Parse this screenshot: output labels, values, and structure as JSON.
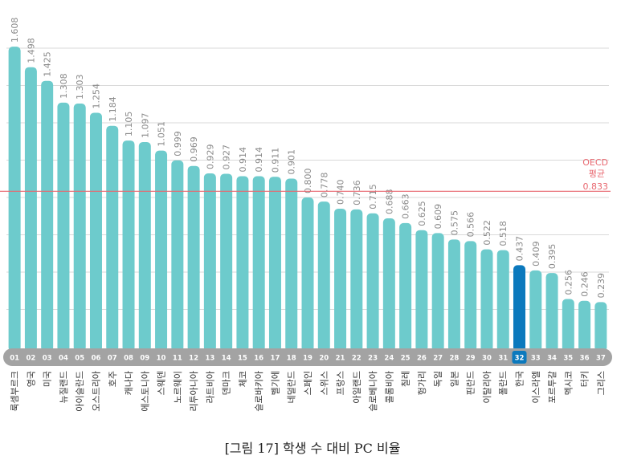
{
  "chart_data": {
    "type": "bar",
    "categories": [
      "룩셈부르크",
      "영국",
      "미국",
      "뉴질랜드",
      "아이슬란드",
      "오스트리아",
      "호주",
      "캐나다",
      "에스토니아",
      "스웨덴",
      "노르웨이",
      "리투아니아",
      "라트비아",
      "덴마크",
      "체코",
      "슬로바키아",
      "벨기에",
      "네덜란드",
      "스페인",
      "스위스",
      "프랑스",
      "아일랜드",
      "슬로베니아",
      "콜롬비아",
      "칠레",
      "헝가리",
      "독일",
      "일본",
      "핀란드",
      "이탈리아",
      "폴란드",
      "한국",
      "이스라엘",
      "포르투갈",
      "멕시코",
      "터키",
      "그리스"
    ],
    "ranks": [
      "01",
      "02",
      "03",
      "04",
      "05",
      "06",
      "07",
      "08",
      "09",
      "10",
      "11",
      "12",
      "13",
      "14",
      "15",
      "16",
      "17",
      "18",
      "19",
      "20",
      "21",
      "22",
      "23",
      "24",
      "25",
      "26",
      "27",
      "28",
      "29",
      "30",
      "31",
      "32",
      "33",
      "34",
      "35",
      "36",
      "37"
    ],
    "values": [
      1.608,
      1.498,
      1.425,
      1.308,
      1.303,
      1.254,
      1.184,
      1.105,
      1.097,
      1.051,
      0.999,
      0.969,
      0.929,
      0.927,
      0.914,
      0.914,
      0.911,
      0.901,
      0.8,
      0.778,
      0.74,
      0.736,
      0.715,
      0.688,
      0.663,
      0.625,
      0.609,
      0.575,
      0.566,
      0.522,
      0.518,
      0.437,
      0.409,
      0.395,
      0.256,
      0.246,
      0.239
    ],
    "value_labels": [
      "1.608",
      "1.498",
      "1.425",
      "1.308",
      "1.303",
      "1.254",
      "1.184",
      "1.105",
      "1.097",
      "1.051",
      "0.999",
      "0.969",
      "0.929",
      "0.927",
      "0.914",
      "0.914",
      "0.911",
      "0.901",
      "0.800",
      "0.778",
      "0.740",
      "0.736",
      "0.715",
      "0.688",
      "0.663",
      "0.625",
      "0.609",
      "0.575",
      "0.566",
      "0.522",
      "0.518",
      "0.437",
      "0.409",
      "0.395",
      "0.256",
      "0.246",
      "0.239"
    ],
    "highlight_index": 31,
    "reference": {
      "value": 0.833,
      "label_line1": "OECD",
      "label_line2": "평균",
      "label_value": "0.833"
    },
    "title": "",
    "xlabel": "",
    "ylabel": "",
    "ylim": [
      0,
      1.7
    ],
    "grid": true,
    "colors": {
      "bar": "#6dcbcc",
      "highlight": "#0b79bd",
      "reference": "#e8676f",
      "grid": "#d9d9d9",
      "rank_band": "#a3a3a3"
    }
  },
  "caption": "[그림 17] 학생 수 대비 PC 비율"
}
